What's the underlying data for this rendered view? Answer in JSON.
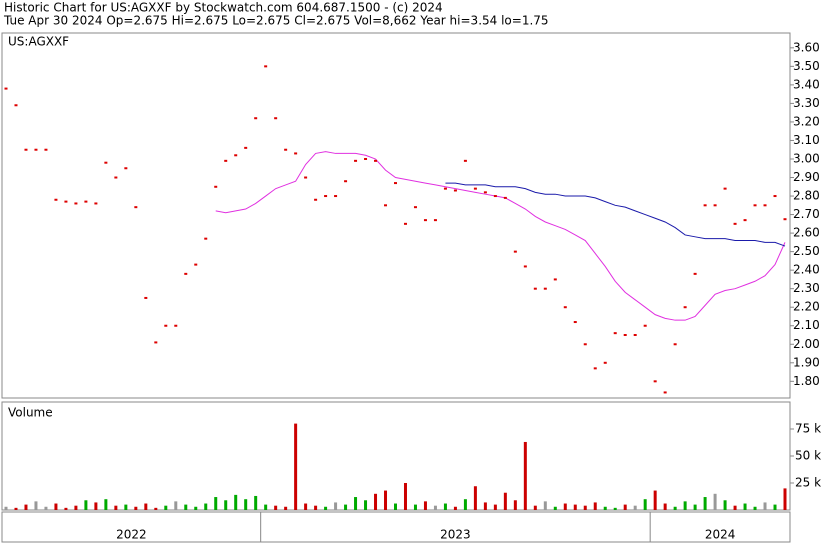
{
  "chart_data": {
    "type": "stock",
    "title": "Historic Chart for US:AGXXF by Stockwatch.com 604.687.1500 - (c) 2024",
    "subtitle": "Tue Apr 30 2024  Op=2.675  Hi=2.675  Lo=2.675  Cl=2.675  Vol=8,662  Year hi=3.54  lo=1.75",
    "symbol": "US:AGXXF",
    "volume_title": "Volume",
    "years": [
      {
        "label": "2022",
        "start": 0
      },
      {
        "label": "2023",
        "start": 26
      },
      {
        "label": "2024",
        "start": 65
      }
    ],
    "series": [
      {
        "name": "Close",
        "color": "#dd0000",
        "values": [
          3.38,
          3.29,
          3.05,
          3.05,
          3.05,
          2.78,
          2.77,
          2.76,
          2.77,
          2.76,
          2.98,
          2.9,
          2.95,
          2.74,
          2.25,
          2.01,
          2.1,
          2.1,
          2.38,
          2.43,
          2.57,
          2.85,
          2.99,
          3.02,
          3.06,
          3.22,
          3.5,
          3.22,
          3.05,
          3.03,
          2.9,
          2.78,
          2.8,
          2.8,
          2.88,
          2.99,
          3.0,
          2.99,
          2.75,
          2.87,
          2.65,
          2.74,
          2.67,
          2.67,
          2.84,
          2.83,
          2.99,
          2.84,
          2.82,
          2.8,
          2.79,
          2.5,
          2.42,
          2.3,
          2.3,
          2.35,
          2.2,
          2.12,
          2.0,
          1.87,
          1.9,
          2.06,
          2.05,
          2.05,
          2.1,
          1.8,
          1.74,
          2.0,
          2.2,
          2.38,
          2.75,
          2.75,
          2.84,
          2.65,
          2.67,
          2.75,
          2.75,
          2.8,
          2.675
        ]
      },
      {
        "name": "MA1",
        "color": "#e030e0",
        "values": [
          null,
          null,
          null,
          null,
          null,
          null,
          null,
          null,
          null,
          null,
          null,
          null,
          null,
          null,
          null,
          null,
          null,
          null,
          null,
          null,
          null,
          2.72,
          2.71,
          2.72,
          2.73,
          2.76,
          2.8,
          2.84,
          2.86,
          2.88,
          2.97,
          3.03,
          3.04,
          3.03,
          3.03,
          3.03,
          3.02,
          3.0,
          2.94,
          2.9,
          2.89,
          2.88,
          2.87,
          2.86,
          2.85,
          2.84,
          2.83,
          2.82,
          2.81,
          2.8,
          2.79,
          2.76,
          2.73,
          2.69,
          2.66,
          2.64,
          2.62,
          2.59,
          2.56,
          2.49,
          2.42,
          2.34,
          2.28,
          2.24,
          2.2,
          2.16,
          2.14,
          2.13,
          2.13,
          2.15,
          2.21,
          2.27,
          2.29,
          2.3,
          2.32,
          2.34,
          2.37,
          2.43,
          2.55
        ]
      },
      {
        "name": "MA2",
        "color": "#1a1aaa",
        "values": [
          null,
          null,
          null,
          null,
          null,
          null,
          null,
          null,
          null,
          null,
          null,
          null,
          null,
          null,
          null,
          null,
          null,
          null,
          null,
          null,
          null,
          null,
          null,
          null,
          null,
          null,
          null,
          null,
          null,
          null,
          null,
          null,
          null,
          null,
          null,
          null,
          null,
          null,
          null,
          null,
          null,
          null,
          null,
          null,
          2.87,
          2.87,
          2.86,
          2.86,
          2.86,
          2.85,
          2.85,
          2.85,
          2.84,
          2.82,
          2.81,
          2.81,
          2.8,
          2.8,
          2.8,
          2.79,
          2.77,
          2.75,
          2.74,
          2.72,
          2.7,
          2.68,
          2.66,
          2.63,
          2.59,
          2.58,
          2.57,
          2.57,
          2.57,
          2.56,
          2.56,
          2.56,
          2.55,
          2.55,
          2.53
        ]
      }
    ],
    "volume": [
      3000,
      2000,
      5000,
      8000,
      3000,
      6000,
      2000,
      4000,
      9000,
      7000,
      10000,
      4000,
      5000,
      3000,
      6000,
      2000,
      4000,
      8000,
      5000,
      3000,
      6000,
      12000,
      9000,
      14000,
      10000,
      13000,
      5000,
      4000,
      3000,
      80000,
      6000,
      4000,
      3000,
      7000,
      5000,
      12000,
      9000,
      15000,
      18000,
      6000,
      25000,
      5000,
      8000,
      4000,
      6000,
      3000,
      10000,
      22000,
      7000,
      5000,
      16000,
      9000,
      63000,
      4000,
      8000,
      3000,
      6000,
      5000,
      4000,
      7000,
      3000,
      2000,
      5000,
      4000,
      10000,
      18000,
      6000,
      3000,
      8000,
      5000,
      12000,
      15000,
      9000,
      4000,
      6000,
      3000,
      7000,
      5000,
      20000
    ],
    "volume_colors": {
      "up": "#00aa00",
      "down": "#cc0000",
      "flat": "#999999"
    },
    "ylim": [
      1.71,
      3.68
    ],
    "yticks": [
      {
        "value": 1.8,
        "label": "1.80"
      },
      {
        "value": 1.9,
        "label": "1.90"
      },
      {
        "value": 2.0,
        "label": "2.00"
      },
      {
        "value": 2.1,
        "label": "2.10"
      },
      {
        "value": 2.2,
        "label": "2.20"
      },
      {
        "value": 2.3,
        "label": "2.30"
      },
      {
        "value": 2.4,
        "label": "2.40"
      },
      {
        "value": 2.5,
        "label": "2.50"
      },
      {
        "value": 2.6,
        "label": "2.60"
      },
      {
        "value": 2.7,
        "label": "2.70"
      },
      {
        "value": 2.8,
        "label": "2.80"
      },
      {
        "value": 2.9,
        "label": "2.90"
      },
      {
        "value": 3.0,
        "label": "3.00"
      },
      {
        "value": 3.1,
        "label": "3.10"
      },
      {
        "value": 3.2,
        "label": "3.20"
      },
      {
        "value": 3.3,
        "label": "3.30"
      },
      {
        "value": 3.4,
        "label": "3.40"
      },
      {
        "value": 3.5,
        "label": "3.50"
      },
      {
        "value": 3.6,
        "label": "3.60"
      }
    ],
    "y2lim": [
      0,
      100000
    ],
    "y2ticks": [
      {
        "value": 25000,
        "label": "25 k"
      },
      {
        "value": 50000,
        "label": "50 k"
      },
      {
        "value": 75000,
        "label": "75 k"
      }
    ]
  }
}
